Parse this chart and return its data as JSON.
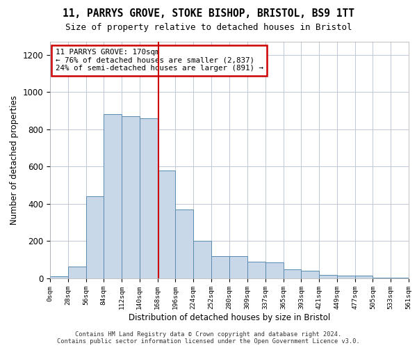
{
  "title1": "11, PARRYS GROVE, STOKE BISHOP, BRISTOL, BS9 1TT",
  "title2": "Size of property relative to detached houses in Bristol",
  "xlabel": "Distribution of detached houses by size in Bristol",
  "ylabel": "Number of detached properties",
  "footer1": "Contains HM Land Registry data © Crown copyright and database right 2024.",
  "footer2": "Contains public sector information licensed under the Open Government Licence v3.0.",
  "annotation_line1": "11 PARRYS GROVE: 170sqm",
  "annotation_line2": "← 76% of detached houses are smaller (2,837)",
  "annotation_line3": "24% of semi-detached houses are larger (891) →",
  "bar_color": "#c8d8e8",
  "bar_edge_color": "#5a8ab0",
  "vline_color": "#cc0000",
  "vline_x": 170,
  "annotation_box_edge_color": "#cc0000",
  "background_color": "#ffffff",
  "grid_color": "#c0c8d8",
  "bins": [
    0,
    28,
    56,
    84,
    112,
    140,
    168,
    196,
    224,
    252,
    280,
    309,
    337,
    365,
    393,
    421,
    449,
    477,
    505,
    533,
    561
  ],
  "bin_labels": [
    "0sqm",
    "28sqm",
    "56sqm",
    "84sqm",
    "112sqm",
    "140sqm",
    "168sqm",
    "196sqm",
    "224sqm",
    "252sqm",
    "280sqm",
    "309sqm",
    "337sqm",
    "365sqm",
    "393sqm",
    "421sqm",
    "449sqm",
    "477sqm",
    "505sqm",
    "533sqm",
    "561sqm"
  ],
  "bar_heights": [
    10,
    62,
    440,
    880,
    870,
    860,
    580,
    370,
    200,
    120,
    120,
    90,
    85,
    50,
    40,
    20,
    15,
    15,
    2,
    2
  ],
  "yticks": [
    0,
    200,
    400,
    600,
    800,
    1000,
    1200
  ],
  "ylim": [
    0,
    1270
  ],
  "xlim": [
    0,
    561
  ]
}
